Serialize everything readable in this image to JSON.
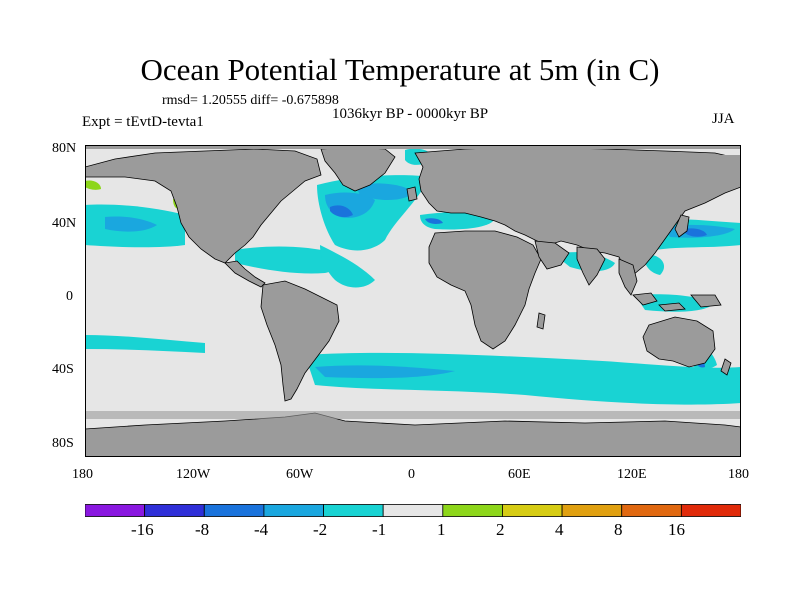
{
  "title": "Ocean Potential Temperature at 5m (in C)",
  "stats": "rmsd= 1.20555 diff= -0.675898",
  "subtitle": "1036kyr BP - 0000kyr BP",
  "experiment": "Expt = tEvtD-tevta1",
  "season": "JJA",
  "lat_labels": [
    "80N",
    "40N",
    "0",
    "40S",
    "80S"
  ],
  "lon_labels": [
    "180",
    "120W",
    "60W",
    "0",
    "60E",
    "120E",
    "180"
  ],
  "colorbar": {
    "labels": [
      "-16",
      "-8",
      "-4",
      "-2",
      "-1",
      "1",
      "2",
      "4",
      "8",
      "16"
    ],
    "colors": [
      "#8a18e0",
      "#2f2fd8",
      "#1a73dc",
      "#1aa7df",
      "#19d3d3",
      "#e6e6e6",
      "#8dd61a",
      "#d6cc14",
      "#e0a010",
      "#e06810",
      "#e02a0a"
    ]
  },
  "colors": {
    "land": "#9b9b9b",
    "no_change": "#e6e6e6",
    "cool_light": "#19d3d3",
    "cool_mid": "#1aa7df",
    "cool_strong": "#1a73dc"
  }
}
